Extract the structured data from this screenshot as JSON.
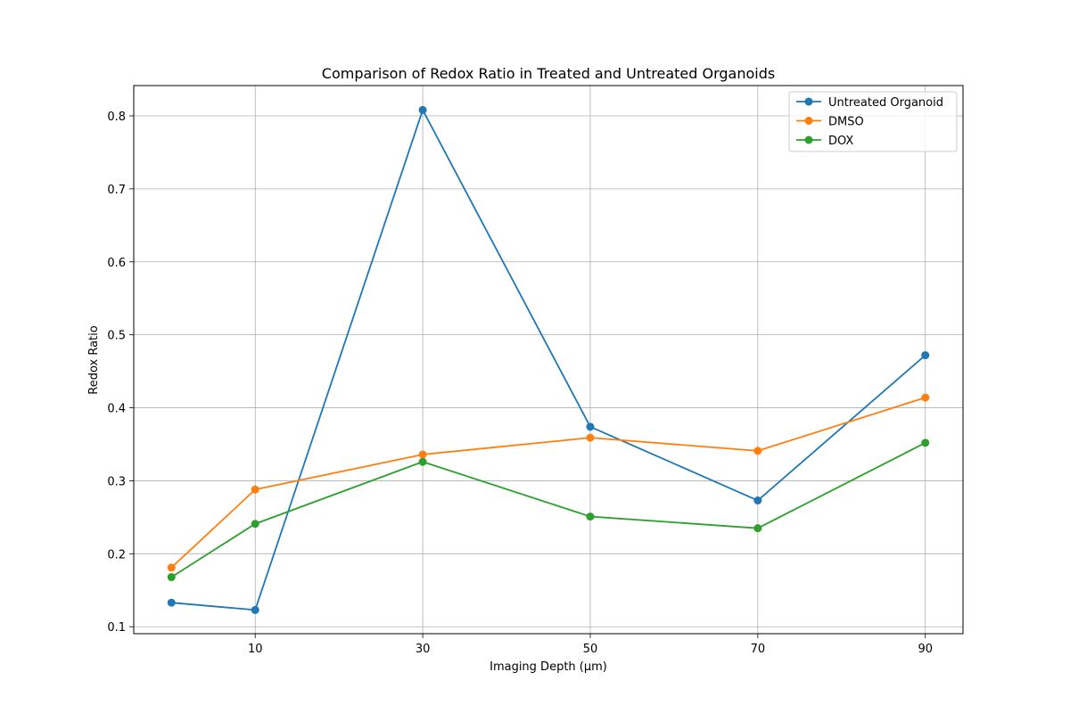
{
  "chart_data": {
    "type": "line",
    "title": "Comparison of Redox Ratio in Treated and Untreated Organoids",
    "xlabel": "Imaging Depth (µm)",
    "ylabel": "Redox Ratio",
    "x": [
      0,
      10,
      30,
      50,
      70,
      90
    ],
    "x_ticks": [
      10,
      30,
      50,
      70,
      90
    ],
    "y_ticks": [
      0.1,
      0.2,
      0.3,
      0.4,
      0.5,
      0.6,
      0.7,
      0.8
    ],
    "xlim": [
      -4.5,
      94.5
    ],
    "ylim": [
      0.0905,
      0.8415
    ],
    "grid": true,
    "legend_position": "top-right",
    "series": [
      {
        "name": "Untreated Organoid",
        "color": "#1f77b4",
        "values": [
          0.133,
          0.123,
          0.808,
          0.374,
          0.273,
          0.472
        ]
      },
      {
        "name": "DMSO",
        "color": "#ff7f0e",
        "values": [
          0.181,
          0.288,
          0.336,
          0.359,
          0.341,
          0.414
        ]
      },
      {
        "name": "DOX",
        "color": "#2ca02c",
        "values": [
          0.168,
          0.241,
          0.326,
          0.251,
          0.235,
          0.352
        ]
      }
    ]
  }
}
